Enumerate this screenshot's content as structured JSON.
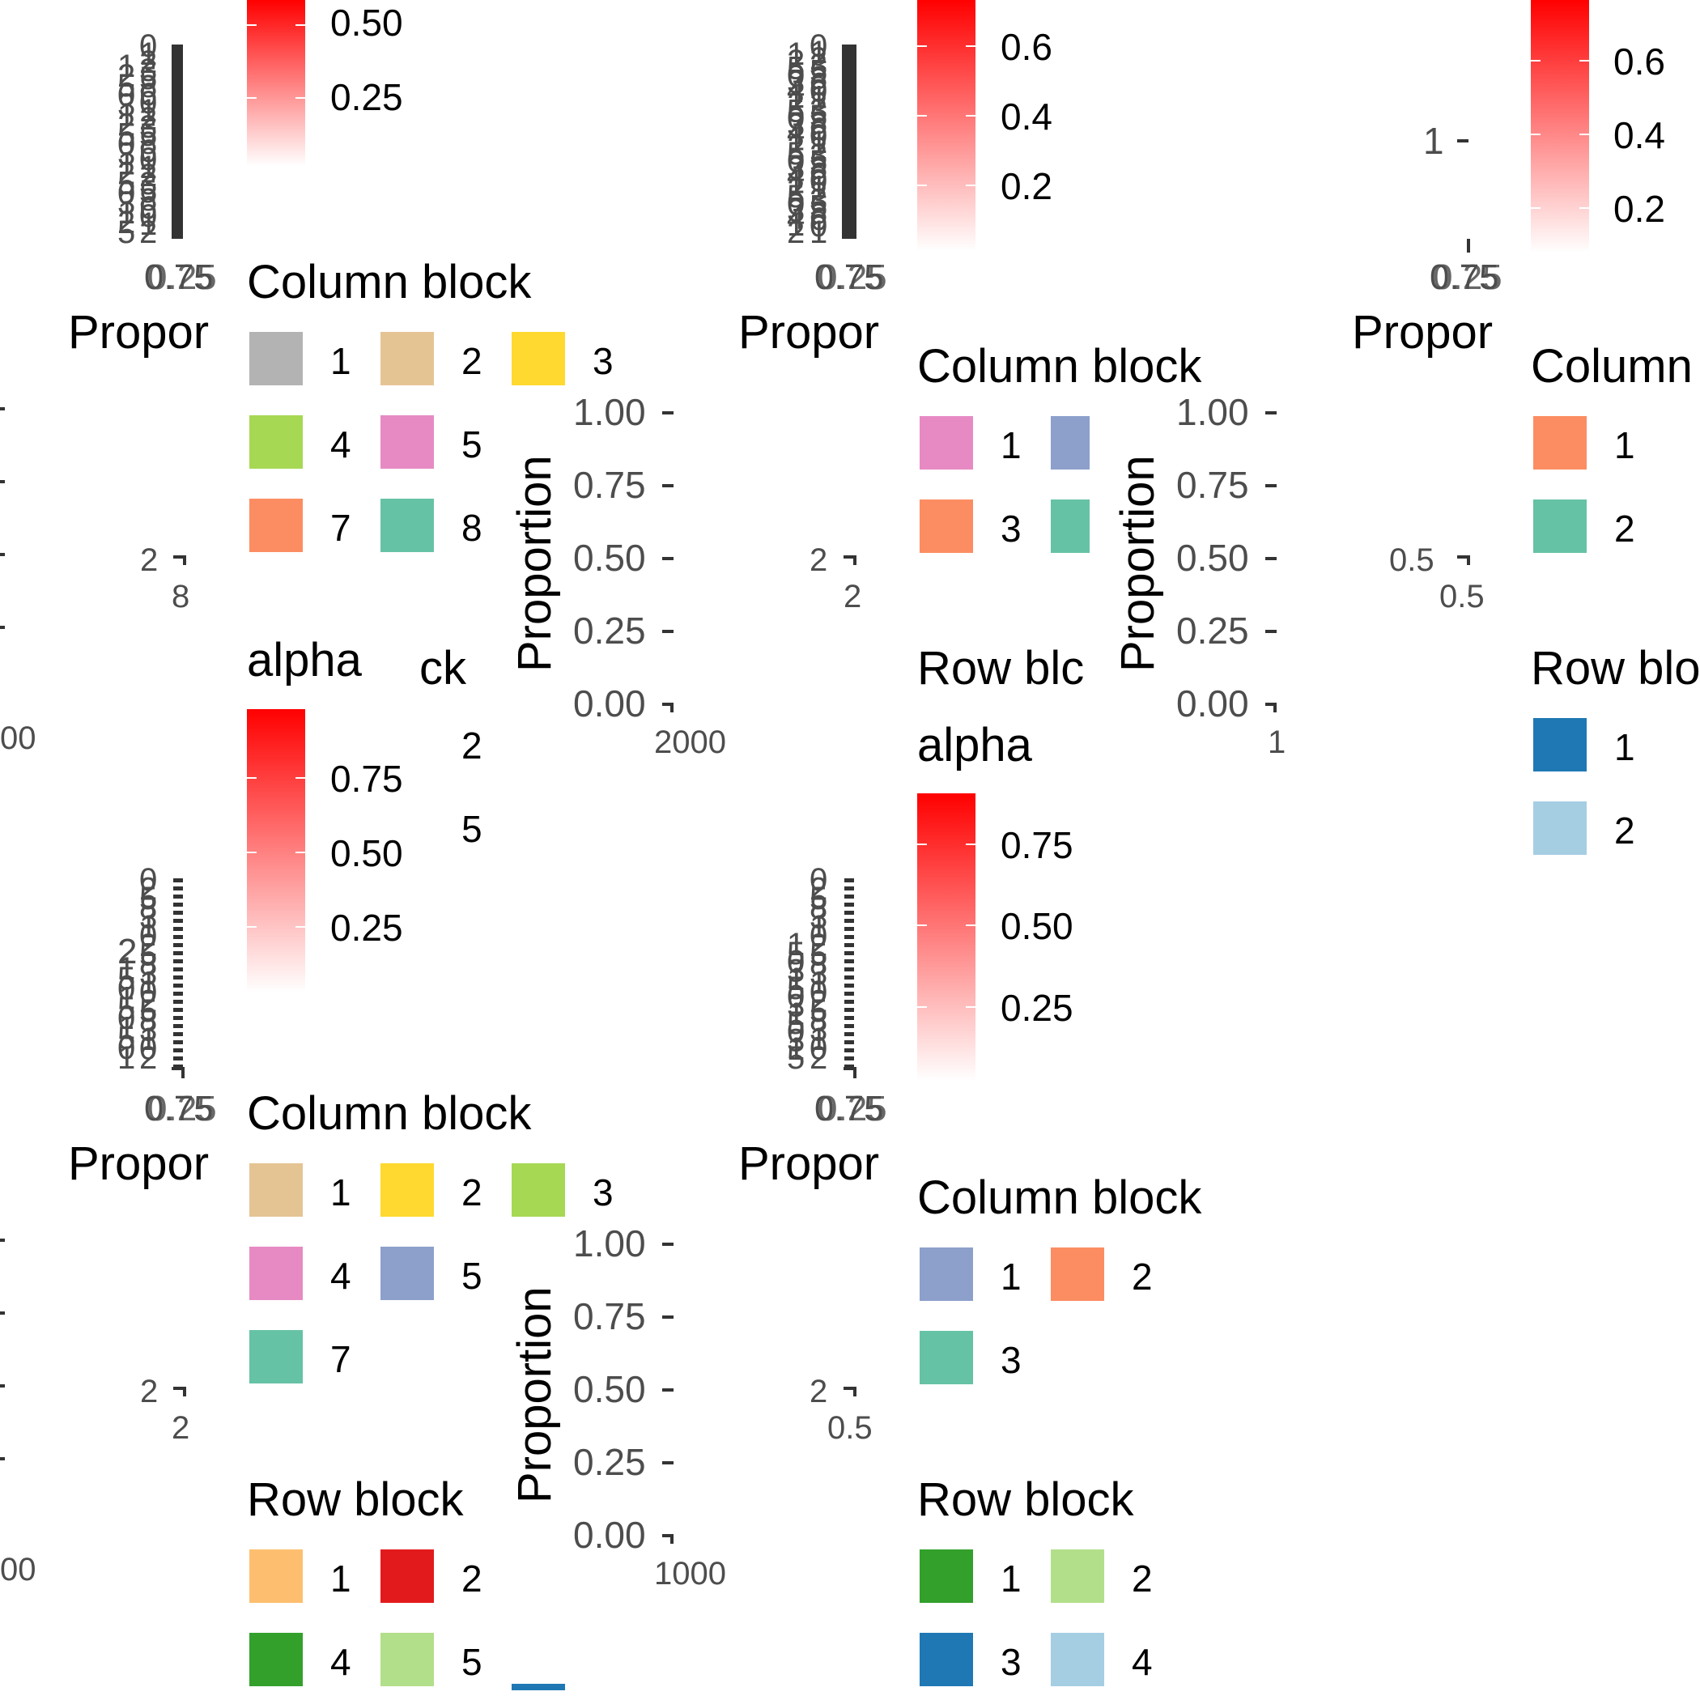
{
  "colors": {
    "grey": "#B3B3B3",
    "tan": "#E5C494",
    "yellow": "#FFD92F",
    "green": "#A6D854",
    "pink": "#E78AC3",
    "blue_violet": "#8DA0CB",
    "salmon": "#FC8D62",
    "teal": "#66C2A5",
    "orange_light": "#FDBF6F",
    "red": "#E31A1C",
    "dark_green": "#33A02C",
    "light_green": "#B2DF8A",
    "dark_blue": "#1F78B4",
    "light_blue": "#A6CEE3",
    "alpha_low": "#FFFFFF",
    "alpha_high": "#FF0000",
    "tick_text": "#4D4D4D",
    "bar_dark": "#333333"
  },
  "chart_data": [
    {
      "type": "bar",
      "panel": "row1-col1",
      "xlabel": "Propor",
      "alpha_ticks": [
        "0.50",
        "0.25"
      ],
      "column_block": {
        "title": "Column block",
        "items": [
          "1",
          "2",
          "3",
          "4",
          "5",
          "7",
          "8"
        ]
      },
      "row_block": {
        "title": "ck",
        "items": [
          "2",
          "5"
        ]
      },
      "x_tick_labels": [
        "0.75",
        "0.25"
      ]
    },
    {
      "type": "bar",
      "panel": "row1-col2",
      "yaxis_title": "Proportion",
      "y_ticks": [
        "1.00",
        "0.75",
        "0.50",
        "0.25",
        "0.00"
      ],
      "ylim": [
        0,
        1
      ],
      "alpha_ticks": [
        "0.6",
        "0.4",
        "0.2"
      ],
      "xlabel": "Propor",
      "x_tick_labels": [
        "0.75",
        "0.25"
      ],
      "column_block": {
        "title": "Column block",
        "items": [
          "1",
          "3"
        ]
      },
      "row_block": {
        "title": "Row blc"
      },
      "alpha_title": "alpha"
    },
    {
      "type": "bar",
      "panel": "row1-col3",
      "yaxis_title": "Proportion",
      "y_ticks": [
        "1.00",
        "0.75",
        "0.50",
        "0.25",
        "0.00"
      ],
      "ylim": [
        0,
        1
      ],
      "x_tick_single": "1",
      "y_tick_single": "1",
      "alpha_ticks": [
        "0.6",
        "0.4",
        "0.2"
      ],
      "xlabel": "Propor",
      "x_tick_labels": [
        "0.75",
        "0.25"
      ],
      "column_block": {
        "title": "Column",
        "items": [
          "1",
          "2"
        ]
      },
      "row_block": {
        "title": "Row blo",
        "items": [
          "1",
          "2"
        ]
      },
      "overlap_labels": [
        "0.5",
        "0.5"
      ]
    },
    {
      "type": "bar",
      "panel": "row2-col1",
      "alpha_title": "alpha",
      "alpha_ticks": [
        "0.75",
        "0.50",
        "0.25"
      ],
      "xlabel": "Propor",
      "x_tick_labels": [
        "0.75",
        "0.25"
      ],
      "column_block": {
        "title": "Column block",
        "items": [
          "1",
          "2",
          "3",
          "4",
          "5",
          "7"
        ]
      },
      "row_block": {
        "title": "Row block",
        "items": [
          "1",
          "2",
          "4",
          "5"
        ]
      },
      "y_tick_extra": "2"
    },
    {
      "type": "bar",
      "panel": "row2-col2",
      "yaxis_title": "Proportion",
      "y_ticks": [
        "1.00",
        "0.75",
        "0.50",
        "0.25",
        "0.00"
      ],
      "ylim": [
        0,
        1
      ],
      "alpha_title": "alpha",
      "alpha_ticks": [
        "0.75",
        "0.50",
        "0.25"
      ],
      "xlabel": "Propor",
      "x_tick_labels": [
        "0.75",
        "0.25"
      ],
      "column_block": {
        "title": "Column block",
        "items": [
          "1",
          "2",
          "3"
        ]
      },
      "row_block": {
        "title": "Row block",
        "items": [
          "1",
          "2",
          "3",
          "4"
        ]
      },
      "overlap_labels": [
        "0.5",
        "0.5"
      ]
    }
  ]
}
